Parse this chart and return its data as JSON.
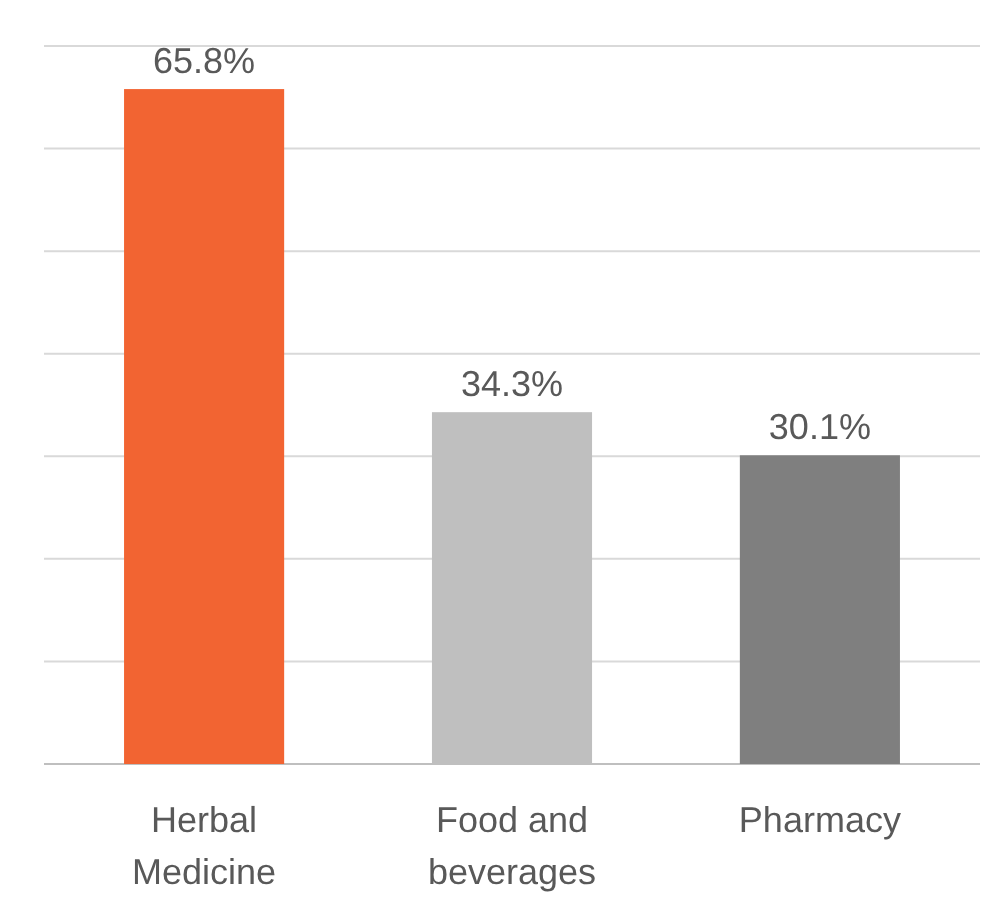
{
  "chart_data": {
    "type": "bar",
    "categories": [
      "Herbal Medicine",
      "Food and beverages",
      "Pharmacy"
    ],
    "values": [
      65.8,
      34.3,
      30.1
    ],
    "colors": [
      "#f26432",
      "#bfbfbf",
      "#7f7f7f"
    ],
    "value_labels": [
      "65.8%",
      "34.3%",
      "30.1%"
    ],
    "ylim": [
      0,
      70
    ],
    "yticks": [
      {
        "value": 0,
        "label": null
      },
      {
        "value": 10,
        "label": null
      },
      {
        "value": 20,
        "label": null
      },
      {
        "value": 30,
        "label": null
      },
      {
        "value": 40,
        "label": null
      },
      {
        "value": 50,
        "label": null
      },
      {
        "value": 60,
        "label": null
      },
      {
        "value": 70,
        "label": null
      }
    ],
    "grid": "y",
    "tick_labels": "x"
  }
}
